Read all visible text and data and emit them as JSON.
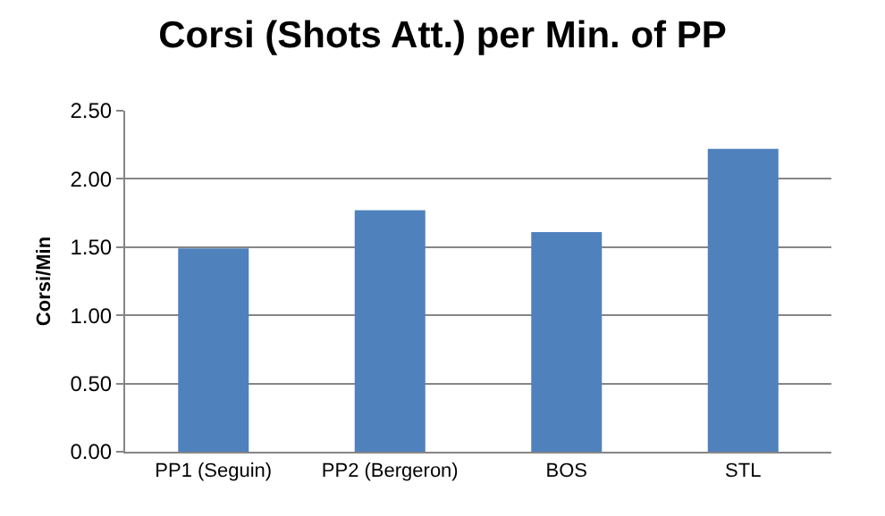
{
  "chart_data": {
    "type": "bar",
    "title": "Corsi (Shots Att.) per Min. of PP",
    "ylabel": "Corsi/Min",
    "categories": [
      "PP1 (Seguin)",
      "PP2 (Bergeron)",
      "BOS",
      "STL"
    ],
    "values": [
      1.49,
      1.77,
      1.61,
      2.22
    ],
    "color": "#4f81bd",
    "ylim": [
      0,
      2.5
    ],
    "yticks": [
      {
        "value": 0,
        "label": "0.00"
      },
      {
        "value": 0.5,
        "label": "0.50"
      },
      {
        "value": 1,
        "label": "1.00"
      },
      {
        "value": 1.5,
        "label": "1.50"
      },
      {
        "value": 2,
        "label": "2.00"
      },
      {
        "value": 2.5,
        "label": "2.50"
      }
    ],
    "grid": "y"
  }
}
